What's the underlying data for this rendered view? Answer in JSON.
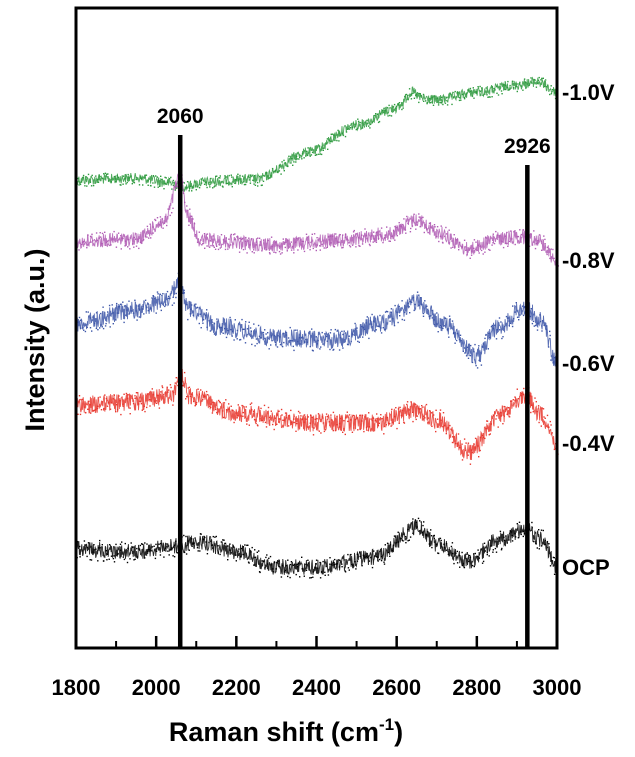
{
  "chart_data": {
    "type": "scatter",
    "xlabel": "Raman shift (cm",
    "xlabel_sup": "-1",
    "xlabel_close": ")",
    "ylabel": "Intensity (a.u.)",
    "xlim": [
      1800,
      3000
    ],
    "xticks": [
      "1800",
      "2000",
      "2200",
      "2400",
      "2600",
      "2800",
      "3000"
    ],
    "xtick_values": [
      1800,
      2000,
      2200,
      2400,
      2600,
      2800,
      3000
    ],
    "minor_tick_step": 100,
    "y_ticks_shown": false,
    "annotations": [
      {
        "label": "2060",
        "x": 2060
      },
      {
        "label": "2926",
        "x": 2926
      }
    ],
    "series": [
      {
        "name": "-1.0V",
        "color": "#2e9a3e",
        "baseline": 180,
        "noise": 5,
        "profile": [
          [
            1800,
            0
          ],
          [
            1950,
            -2
          ],
          [
            2040,
            3
          ],
          [
            2065,
            7
          ],
          [
            2120,
            2
          ],
          [
            2250,
            -1
          ],
          [
            2380,
            -28
          ],
          [
            2500,
            -55
          ],
          [
            2600,
            -72
          ],
          [
            2640,
            -88
          ],
          [
            2660,
            -82
          ],
          [
            2700,
            -80
          ],
          [
            2800,
            -88
          ],
          [
            2900,
            -95
          ],
          [
            2950,
            -98
          ],
          [
            3000,
            -88
          ]
        ]
      },
      {
        "name": "-0.8V",
        "color": "#b05cb4",
        "baseline": 242,
        "noise": 7,
        "profile": [
          [
            1800,
            0
          ],
          [
            1950,
            -3
          ],
          [
            2020,
            -20
          ],
          [
            2060,
            -65
          ],
          [
            2080,
            -25
          ],
          [
            2110,
            -2
          ],
          [
            2300,
            3
          ],
          [
            2450,
            -2
          ],
          [
            2580,
            -8
          ],
          [
            2650,
            -22
          ],
          [
            2700,
            -10
          ],
          [
            2780,
            7
          ],
          [
            2850,
            -3
          ],
          [
            2900,
            -5
          ],
          [
            2950,
            -3
          ],
          [
            3000,
            18
          ]
        ]
      },
      {
        "name": "-0.6V",
        "color": "#3d56a8",
        "baseline": 328,
        "noise": 9,
        "profile": [
          [
            1800,
            -5
          ],
          [
            1950,
            -18
          ],
          [
            2030,
            -28
          ],
          [
            2055,
            -45
          ],
          [
            2080,
            -20
          ],
          [
            2150,
            -2
          ],
          [
            2300,
            10
          ],
          [
            2450,
            12
          ],
          [
            2560,
            -5
          ],
          [
            2650,
            -25
          ],
          [
            2720,
            -3
          ],
          [
            2800,
            28
          ],
          [
            2850,
            0
          ],
          [
            2920,
            -20
          ],
          [
            2960,
            -8
          ],
          [
            3000,
            35
          ]
        ]
      },
      {
        "name": "-0.4V",
        "color": "#e8372e",
        "baseline": 405,
        "noise": 9,
        "profile": [
          [
            1800,
            0
          ],
          [
            1950,
            -3
          ],
          [
            2040,
            -10
          ],
          [
            2060,
            -30
          ],
          [
            2085,
            -8
          ],
          [
            2200,
            8
          ],
          [
            2400,
            18
          ],
          [
            2550,
            18
          ],
          [
            2650,
            5
          ],
          [
            2700,
            15
          ],
          [
            2780,
            47
          ],
          [
            2860,
            10
          ],
          [
            2920,
            -10
          ],
          [
            2960,
            10
          ],
          [
            3000,
            38
          ]
        ]
      },
      {
        "name": "OCP",
        "color": "#000000",
        "baseline": 549,
        "noise": 8,
        "profile": [
          [
            1800,
            0
          ],
          [
            1950,
            3
          ],
          [
            2050,
            -3
          ],
          [
            2100,
            -8
          ],
          [
            2200,
            3
          ],
          [
            2300,
            18
          ],
          [
            2400,
            18
          ],
          [
            2550,
            8
          ],
          [
            2650,
            -22
          ],
          [
            2700,
            -5
          ],
          [
            2780,
            12
          ],
          [
            2850,
            -8
          ],
          [
            2920,
            -20
          ],
          [
            2960,
            -10
          ],
          [
            3000,
            18
          ]
        ]
      }
    ]
  }
}
